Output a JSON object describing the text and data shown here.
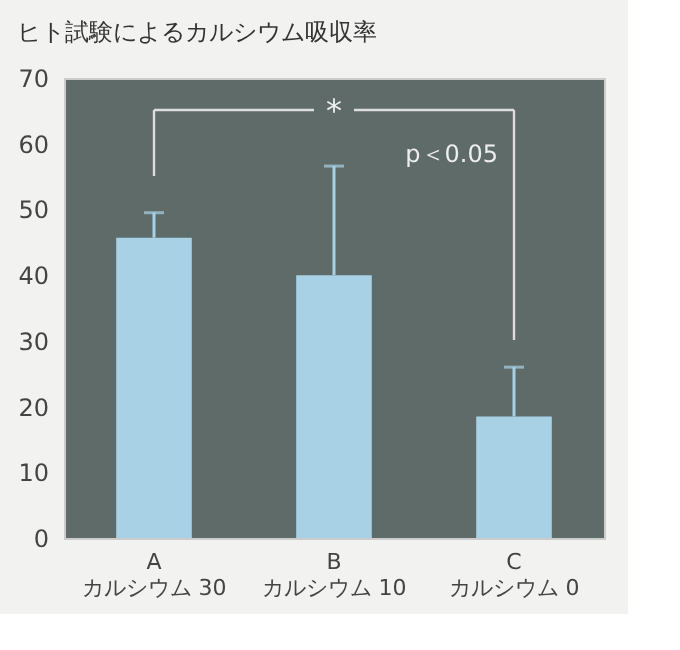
{
  "chart_data": {
    "type": "bar",
    "title": "ヒト試験によるカルシウム吸収率",
    "categories": [
      "A\nカルシウム 30",
      "B\nカルシウム 10",
      "C\nカルシウム 0"
    ],
    "values": [
      45.7,
      40,
      18.5
    ],
    "errors": [
      [
        45.7,
        49.5
      ],
      [
        40,
        56.6
      ],
      [
        18.5,
        26
      ]
    ],
    "color": "#a9d1e6",
    "ylim": [
      0,
      70
    ],
    "yticks": [
      0,
      10,
      20,
      30,
      40,
      50,
      60,
      70
    ],
    "grid": false,
    "annotations": [
      "*",
      "p＜0.05"
    ]
  }
}
